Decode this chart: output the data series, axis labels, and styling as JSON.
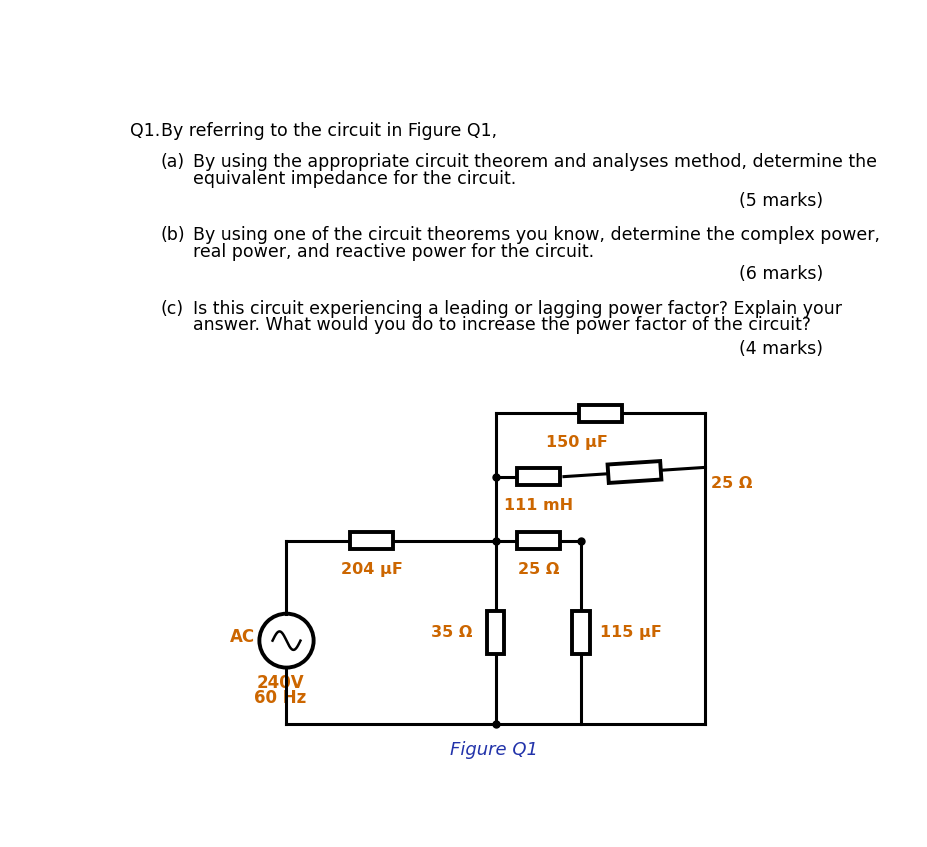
{
  "q1_label": "Q1.",
  "q1_text": "By referring to the circuit in Figure Q1,",
  "qa_label": "(a)",
  "qa_line1": "By using the appropriate circuit theorem and analyses method, determine the",
  "qa_line2": "equivalent impedance for the circuit.",
  "qa_marks": "(5 marks)",
  "qb_label": "(b)",
  "qb_line1": "By using one of the circuit theorems you know, determine the complex power,",
  "qb_line2": "real power, and reactive power for the circuit.",
  "qb_marks": "(6 marks)",
  "qc_label": "(c)",
  "qc_line1": "Is this circuit experiencing a leading or lagging power factor? Explain your",
  "qc_line2": "answer. What would you do to increase the power factor of the circuit?",
  "qc_marks": "(4 marks)",
  "fig_label": "Figure Q1",
  "comp_150uF": "150 μF",
  "comp_111mH": "111 mH",
  "comp_25ohm_diag": "25 Ω",
  "comp_204uF": "204 μF",
  "comp_25ohm": "25 Ω",
  "comp_35ohm": "35 Ω",
  "comp_115uF": "115 μF",
  "ac_label1": "AC",
  "ac_label2": "240V",
  "ac_label3": "60 Hz",
  "bg_color": "#ffffff",
  "text_color": "#000000",
  "orange_color": "#cc6600",
  "fig_color": "#2233aa",
  "lw_line": 2.2,
  "lw_comp": 2.8,
  "fs_text": 12.5,
  "fs_comp": 11.0,
  "fs_fig": 12.0
}
